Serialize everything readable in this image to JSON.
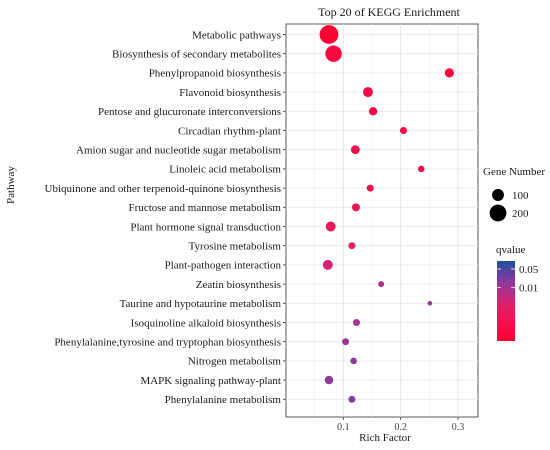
{
  "chart_data": {
    "type": "scatter",
    "title": "Top 20 of KEGG Enrichment",
    "xlabel": "Rich Factor",
    "ylabel": "Pathway",
    "xlim": [
      0.0,
      0.335
    ],
    "xticks": [
      0.1,
      0.2,
      0.3
    ],
    "xtick_labels": [
      "0.1",
      "0.2",
      "0.3"
    ],
    "grid": true,
    "categories": [
      "Metabolic pathways",
      "Biosynthesis of secondary metabolites",
      "Phenylpropanoid biosynthesis",
      "Flavonoid biosynthesis",
      "Pentose and glucuronate interconversions",
      "Circadian rhythm-plant",
      "Amion sugar and nucleotide sugar metabolism",
      "Linoleic acid metabolism",
      "Ubiquinone and other terpenoid-quinone biosynthesis",
      "Fructose and mannose metabolism",
      "Plant hormone signal transduction",
      "Tyrosine metabolism",
      "Plant-pathogen interaction",
      "Zeatin biosynthesis",
      "Taurine and hypotaurine metabolism",
      "Isoquinoline alkaloid biosynthesis",
      "Phenylalanine,tyrosine and tryptophan biosynthesis",
      "Nitrogen metabolism",
      "MAPK signaling pathway-plant",
      "Phenylalanine metabolism"
    ],
    "points": [
      {
        "x": 0.075,
        "gene_number": 250,
        "qvalue": 0.0001
      },
      {
        "x": 0.083,
        "gene_number": 190,
        "qvalue": 0.0002
      },
      {
        "x": 0.285,
        "gene_number": 60,
        "qvalue": 0.0002
      },
      {
        "x": 0.143,
        "gene_number": 70,
        "qvalue": 0.0003
      },
      {
        "x": 0.152,
        "gene_number": 50,
        "qvalue": 0.0003
      },
      {
        "x": 0.205,
        "gene_number": 35,
        "qvalue": 0.0003
      },
      {
        "x": 0.121,
        "gene_number": 55,
        "qvalue": 0.0004
      },
      {
        "x": 0.236,
        "gene_number": 30,
        "qvalue": 0.0005
      },
      {
        "x": 0.147,
        "gene_number": 35,
        "qvalue": 0.0006
      },
      {
        "x": 0.122,
        "gene_number": 45,
        "qvalue": 0.0007
      },
      {
        "x": 0.078,
        "gene_number": 70,
        "qvalue": 0.001
      },
      {
        "x": 0.115,
        "gene_number": 35,
        "qvalue": 0.002
      },
      {
        "x": 0.073,
        "gene_number": 70,
        "qvalue": 0.003
      },
      {
        "x": 0.166,
        "gene_number": 25,
        "qvalue": 0.008
      },
      {
        "x": 0.251,
        "gene_number": 15,
        "qvalue": 0.012
      },
      {
        "x": 0.123,
        "gene_number": 35,
        "qvalue": 0.011
      },
      {
        "x": 0.104,
        "gene_number": 35,
        "qvalue": 0.014
      },
      {
        "x": 0.118,
        "gene_number": 30,
        "qvalue": 0.015
      },
      {
        "x": 0.075,
        "gene_number": 50,
        "qvalue": 0.016
      },
      {
        "x": 0.115,
        "gene_number": 35,
        "qvalue": 0.019
      }
    ],
    "size_legend": {
      "title": "Gene Number",
      "entries": [
        {
          "label": "100",
          "value": 100
        },
        {
          "label": "200",
          "value": 200
        }
      ]
    },
    "color_legend": {
      "title": "qvalue",
      "tick_labels": [
        "0.01",
        "0.05"
      ],
      "tick_values": [
        0.01,
        0.05
      ],
      "scale": "log10",
      "range": [
        0.0001,
        0.1
      ],
      "low_color": "#ff0033",
      "high_color": "#1f4fa0"
    }
  }
}
